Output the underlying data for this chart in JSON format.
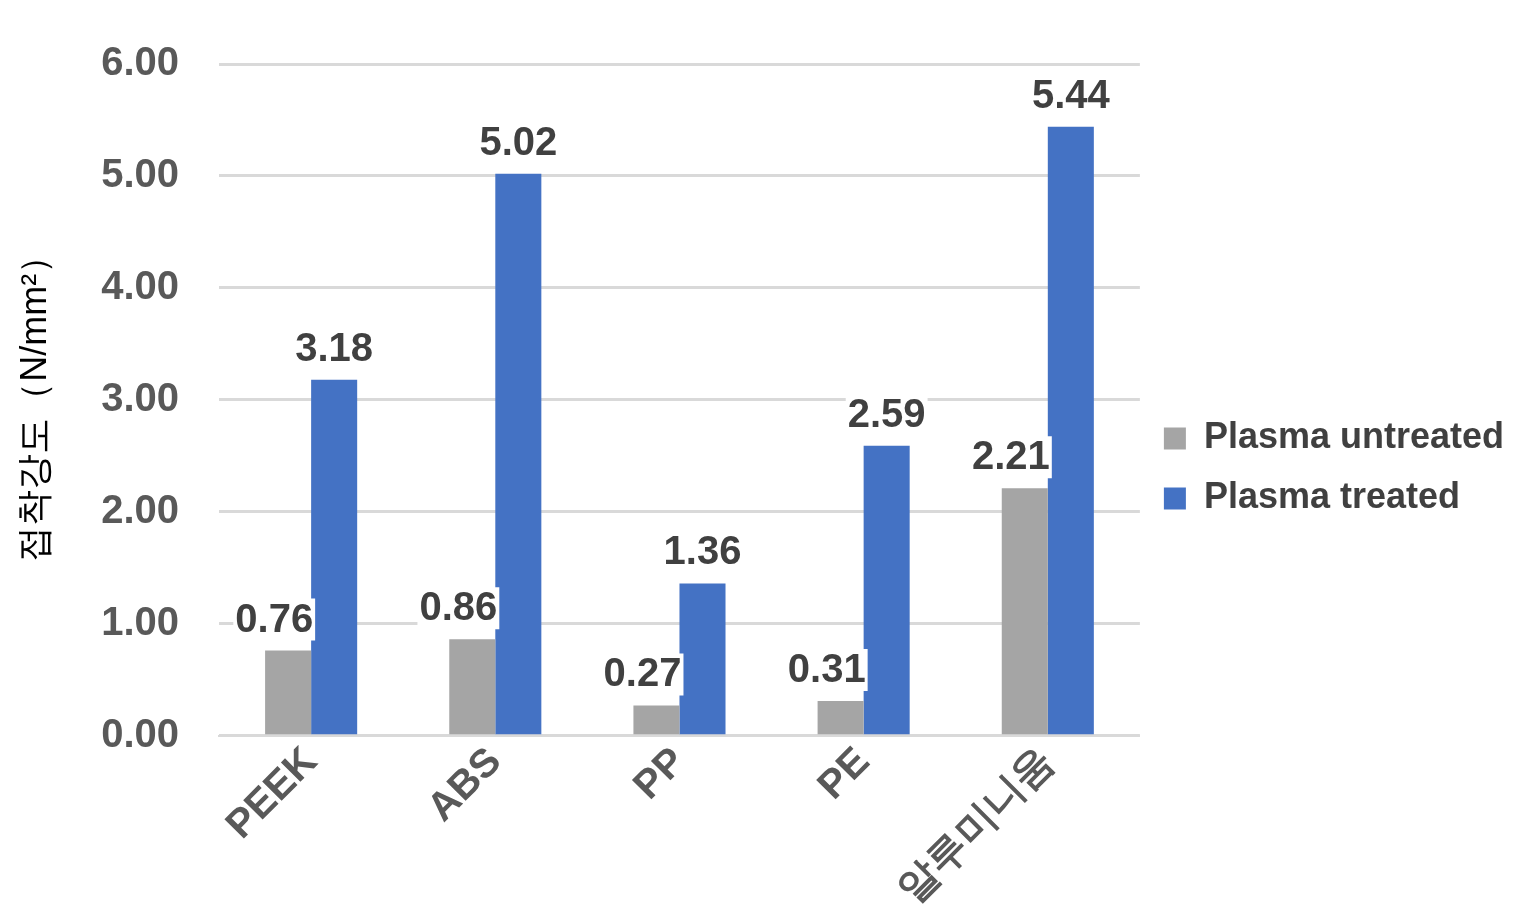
{
  "chart_data": {
    "type": "bar",
    "ylabel": "접착강도（N/mm²）",
    "categories": [
      "PEEK",
      "ABS",
      "PP",
      "PE",
      "알루미니움"
    ],
    "series": [
      {
        "name": "Plasma untreated",
        "color": "#a5a5a5",
        "values": [
          0.76,
          0.86,
          0.27,
          0.31,
          2.21
        ]
      },
      {
        "name": "Plasma treated",
        "color": "#4472c4",
        "values": [
          3.18,
          5.02,
          1.36,
          2.59,
          5.44
        ]
      }
    ],
    "ylim": [
      0,
      6
    ],
    "yticks": [
      {
        "value": 0,
        "label": "0.00"
      },
      {
        "value": 1,
        "label": "1.00"
      },
      {
        "value": 2,
        "label": "2.00"
      },
      {
        "value": 3,
        "label": "3.00"
      },
      {
        "value": 4,
        "label": "4.00"
      },
      {
        "value": 5,
        "label": "5.00"
      },
      {
        "value": 6,
        "label": "6.00"
      }
    ],
    "grid": "y",
    "legend": "right",
    "data_labels": true
  }
}
